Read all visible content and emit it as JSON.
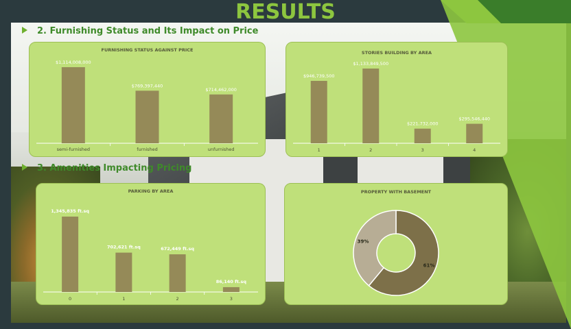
{
  "page": {
    "title": "RESULTS",
    "sections": [
      {
        "label": "2. Furnishing Status and Its Impact on Price"
      },
      {
        "label": "3. Amenities Impacting Pricing"
      }
    ]
  },
  "colors": {
    "title": "#8dc63f",
    "panel_bg": "#bfe07a",
    "bar": "#958a58",
    "donut_main": "#7d7049",
    "donut_secondary": "#b7ad95"
  },
  "chart_data": [
    {
      "type": "bar",
      "title": "FURNISHING STATUS AGAINST PRICE",
      "categories": [
        "semi-furnished",
        "furnished",
        "unfurnished"
      ],
      "values": [
        1114008000,
        769397440,
        714462000
      ],
      "value_labels": [
        "$1,114,008,000",
        "$769,397,440",
        "$714,462,000"
      ],
      "ylim": [
        0,
        1114008000
      ]
    },
    {
      "type": "bar",
      "title": "STORIES BUILDING BY AREA",
      "categories": [
        "1",
        "2",
        "3",
        "4"
      ],
      "values": [
        946739500,
        1133849500,
        221732000,
        295546440
      ],
      "value_labels": [
        "$946,739,500",
        "$1,133,849,500",
        "$221,732,000",
        "$295,546,440"
      ],
      "ylim": [
        0,
        1133849500
      ]
    },
    {
      "type": "bar",
      "title": "PARKING BY AREA",
      "categories": [
        "0",
        "1",
        "2",
        "3"
      ],
      "values": [
        1345835,
        702621,
        672449,
        86140
      ],
      "value_labels": [
        "1,345,835 ft.sq",
        "702,621 ft.sq",
        "672,449 ft.sq",
        "86,140 ft.sq"
      ],
      "ylim": [
        0,
        1345835
      ]
    },
    {
      "type": "pie",
      "title": "PROPERTY WITH BASEMENT",
      "values": [
        61,
        39
      ],
      "value_labels": [
        "61%",
        "39%"
      ]
    }
  ]
}
